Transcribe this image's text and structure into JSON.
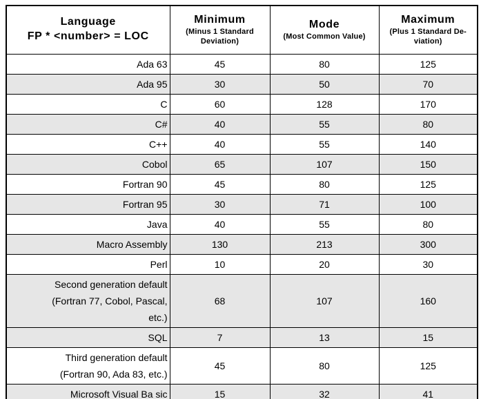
{
  "table": {
    "columns": [
      {
        "id": "language",
        "title": "Language",
        "subtitle": "FP * <number> = LOC"
      },
      {
        "id": "minimum",
        "title": "Minimum",
        "subtitle": "(Minus 1 Standard\nDeviation)"
      },
      {
        "id": "mode",
        "title": "Mode",
        "subtitle": "(Most Common Value)"
      },
      {
        "id": "maximum",
        "title": "Maximum",
        "subtitle": "(Plus 1 Standard De-\nviation)"
      }
    ],
    "rows": [
      {
        "language": "Ada 63",
        "minimum": "45",
        "mode": "80",
        "maximum": "125",
        "shaded": false
      },
      {
        "language": "Ada 95",
        "minimum": "30",
        "mode": "50",
        "maximum": "70",
        "shaded": true
      },
      {
        "language": "C",
        "minimum": "60",
        "mode": "128",
        "maximum": "170",
        "shaded": false
      },
      {
        "language": "C#",
        "minimum": "40",
        "mode": "55",
        "maximum": "80",
        "shaded": true
      },
      {
        "language": "C++",
        "minimum": "40",
        "mode": "55",
        "maximum": "140",
        "shaded": false
      },
      {
        "language": "Cobol",
        "minimum": "65",
        "mode": "107",
        "maximum": "150",
        "shaded": true
      },
      {
        "language": "Fortran 90",
        "minimum": "45",
        "mode": "80",
        "maximum": "125",
        "shaded": false
      },
      {
        "language": "Fortran 95",
        "minimum": "30",
        "mode": "71",
        "maximum": "100",
        "shaded": true
      },
      {
        "language": "Java",
        "minimum": "40",
        "mode": "55",
        "maximum": "80",
        "shaded": false
      },
      {
        "language": "Macro Assembly",
        "minimum": "130",
        "mode": "213",
        "maximum": "300",
        "shaded": true
      },
      {
        "language": "Perl",
        "minimum": "10",
        "mode": "20",
        "maximum": "30",
        "shaded": false
      },
      {
        "language": "Second generation default\n(Fortran 77, Cobol, Pascal,\netc.)",
        "minimum": "68",
        "mode": "107",
        "maximum": "160",
        "shaded": true
      },
      {
        "language": "SQL",
        "minimum": "7",
        "mode": "13",
        "maximum": "15",
        "shaded": true
      },
      {
        "language": "Third generation default\n(Fortran 90, Ada 83, etc.)",
        "minimum": "45",
        "mode": "80",
        "maximum": "125",
        "shaded": false
      },
      {
        "language": "Microsoft Visual Ba sic",
        "minimum": "15",
        "mode": "32",
        "maximum": "41",
        "shaded": true
      }
    ]
  },
  "colors": {
    "row_shade": "#e6e6e6",
    "background": "#ffffff",
    "border": "#000000"
  }
}
